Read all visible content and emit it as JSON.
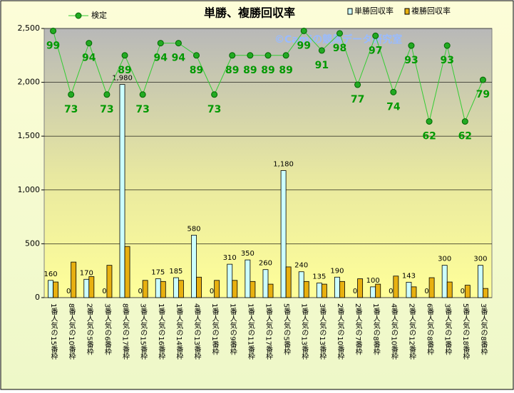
{
  "chart_data": {
    "type": "bar",
    "title": "単勝、複勝回収率",
    "watermark": "©Camiの競馬データ研究室",
    "categories": [
      "1番人気の15番枠",
      "8番人気の10番枠",
      "2番人気の5番枠",
      "3番人気の6番枠",
      "8番人気の17番枠",
      "3番人気の15番枠",
      "1番人気の16番枠",
      "1番人気の14番枠",
      "4番人気の13番枠",
      "1番人気の1番枠",
      "1番人気の9番枠",
      "1番人気の11番枠",
      "1番人気の17番枠",
      "5番人気の5番枠",
      "1番人気の13番枠",
      "3番人気の13番枠",
      "2番人気の10番枠",
      "2番人気の7番枠",
      "1番人気の8番枠",
      "4番人気の10番枠",
      "2番人気の12番枠",
      "6番人気の8番枠",
      "3番人気の1番枠",
      "5番人気の18番枠",
      "3番人気の8番枠"
    ],
    "series": [
      {
        "name": "単勝回収率",
        "color": "#ccffff",
        "type": "bar",
        "values": [
          160,
          0,
          170,
          0,
          1980,
          0,
          175,
          185,
          580,
          0,
          310,
          350,
          260,
          1180,
          240,
          135,
          190,
          0,
          100,
          0,
          143,
          0,
          300,
          0,
          300
        ],
        "value_labels": [
          "160",
          "0",
          "170",
          "0",
          "1,980",
          "0",
          "175",
          "185",
          "580",
          "0",
          "310",
          "350",
          "260",
          "1,180",
          "240",
          "135",
          "190",
          "0",
          "100",
          "0",
          "143",
          "0",
          "300",
          "0",
          "300"
        ]
      },
      {
        "name": "複勝回収率",
        "color": "#e8b010",
        "type": "bar",
        "values": [
          145,
          330,
          195,
          300,
          475,
          160,
          150,
          160,
          190,
          160,
          160,
          150,
          125,
          285,
          150,
          125,
          150,
          175,
          125,
          200,
          100,
          185,
          145,
          115,
          85
        ]
      },
      {
        "name": "検定",
        "color": "#33cc33",
        "type": "line",
        "axis": "y2",
        "values": [
          99,
          73,
          94,
          73,
          89,
          73,
          94,
          94,
          89,
          73,
          89,
          89,
          89,
          89,
          99,
          91,
          98,
          77,
          97,
          74,
          93,
          62,
          93,
          62,
          79
        ]
      }
    ],
    "ylim": [
      0,
      2500
    ],
    "yticks": [
      0,
      500,
      {
        "value": 1000,
        "label": "1,000"
      },
      {
        "value": 1500,
        "label": "1,500"
      },
      {
        "value": 2000,
        "label": "2,000"
      },
      {
        "value": 2500,
        "label": "2,500"
      }
    ],
    "y2lim": [
      -10,
      100
    ],
    "grid": true
  }
}
